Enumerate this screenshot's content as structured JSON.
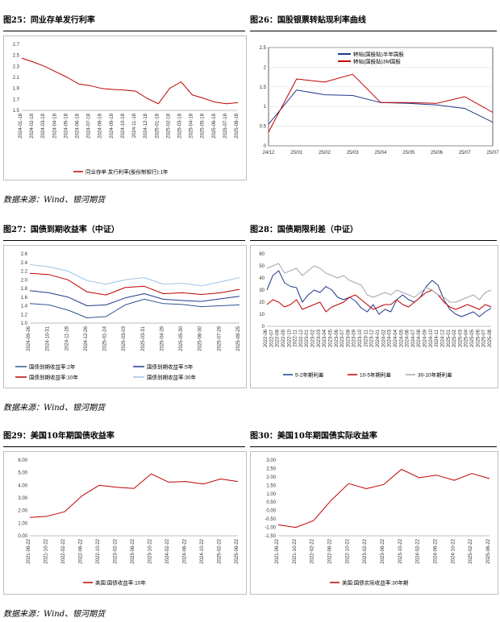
{
  "sections": [
    {
      "source": "数据来源：Wind、银河期货"
    },
    {
      "source": "数据来源：Wind、银河期货"
    },
    {
      "source": "数据来源：Wind、银河期货"
    }
  ],
  "colors": {
    "red": "#c00000",
    "navy": "#1f3a8a",
    "blue": "#2f5597",
    "lightblue": "#9dc3e6",
    "gray": "#a6a6a6",
    "darkred": "#c00000"
  },
  "chart_data": [
    {
      "id": "fig25",
      "type": "line",
      "title": "图25：同业存单发行利率",
      "ylim": [
        1.5,
        2.7
      ],
      "yticks": [
        1.5,
        1.7,
        1.9,
        2.1,
        2.3,
        2.5,
        2.7
      ],
      "x": [
        "2024-01-18",
        "2024-02-18",
        "2024-03-18",
        "2024-04-18",
        "2024-05-18",
        "2024-06-18",
        "2024-07-18",
        "2024-08-18",
        "2024-09-18",
        "2024-10-18",
        "2024-11-18",
        "2024-12-18",
        "2025-01-18",
        "2025-02-18",
        "2025-03-18",
        "2025-04-18",
        "2025-05-18",
        "2025-06-18",
        "2025-07-18",
        "2025-08-18"
      ],
      "series": [
        {
          "name": "同业存单:发行利率(股份制银行):1年",
          "values": [
            2.45,
            2.38,
            2.3,
            2.2,
            2.1,
            1.98,
            1.95,
            1.9,
            1.88,
            1.87,
            1.85,
            1.72,
            1.62,
            1.9,
            2.02,
            1.78,
            1.72,
            1.65,
            1.62,
            1.64
          ]
        }
      ]
    },
    {
      "id": "fig26",
      "type": "line",
      "title": "图26：国股银票转贴现利率曲线",
      "ylim": [
        0,
        2.5
      ],
      "yticks": [
        0,
        0.5,
        1,
        1.5,
        2,
        2.5
      ],
      "x": [
        "24/12",
        "25/01",
        "25/02",
        "25/03",
        "25/04",
        "25/05",
        "25/06",
        "25/07",
        "25/07"
      ],
      "series": [
        {
          "name": "转帖(国股贴)半年国股",
          "values": [
            0.55,
            1.42,
            1.3,
            1.28,
            1.1,
            1.08,
            1.04,
            0.95,
            0.6
          ]
        },
        {
          "name": "转帖(国股贴)3M国股",
          "values": [
            0.35,
            1.7,
            1.62,
            1.82,
            1.1,
            1.1,
            1.08,
            1.25,
            0.85
          ]
        }
      ]
    },
    {
      "id": "fig27",
      "type": "line",
      "title": "图27：国债到期收益率（中证）",
      "ylim": [
        1.0,
        2.6
      ],
      "yticks": [
        1.0,
        1.2,
        1.4,
        1.6,
        1.8,
        2.0,
        2.2,
        2.4,
        2.6
      ],
      "x": [
        "2024-09-26",
        "2024-10-31",
        "2024-11-28",
        "2024-12-26",
        "2025-01-24",
        "2025-03-03",
        "2025-03-31",
        "2025-04-29",
        "2025-05-30",
        "2025-06-30",
        "2025-07-28",
        "2025-08-25"
      ],
      "series": [
        {
          "name": "国债到期收益率:2年",
          "values": [
            1.45,
            1.42,
            1.3,
            1.12,
            1.15,
            1.42,
            1.55,
            1.45,
            1.43,
            1.38,
            1.4,
            1.42
          ]
        },
        {
          "name": "国债到期收益率:5年",
          "values": [
            1.75,
            1.7,
            1.6,
            1.4,
            1.42,
            1.58,
            1.68,
            1.55,
            1.52,
            1.5,
            1.56,
            1.62
          ]
        },
        {
          "name": "国债到期收益率:10年",
          "values": [
            2.15,
            2.12,
            2.0,
            1.72,
            1.65,
            1.82,
            1.85,
            1.68,
            1.7,
            1.66,
            1.7,
            1.78
          ]
        },
        {
          "name": "国债到期收益率:30年",
          "values": [
            2.35,
            2.3,
            2.2,
            1.98,
            1.9,
            2.0,
            2.05,
            1.9,
            1.92,
            1.86,
            1.95,
            2.05
          ]
        }
      ]
    },
    {
      "id": "fig28",
      "type": "line",
      "title": "图28：国债期限利差（中证）",
      "ylim": [
        0,
        60
      ],
      "yticks": [
        0,
        10,
        20,
        30,
        40,
        50,
        60
      ],
      "x": [
        "2022-06",
        "2022-07",
        "2022-08",
        "2022-09",
        "2022-10",
        "2022-11",
        "2022-12",
        "2023-01",
        "2023-02",
        "2023-03",
        "2023-04",
        "2023-05",
        "2023-06",
        "2023-07",
        "2023-08",
        "2023-09",
        "2023-10",
        "2023-11",
        "2023-12",
        "2024-01",
        "2024-02",
        "2024-03",
        "2024-04",
        "2024-05",
        "2024-06",
        "2024-07",
        "2024-08",
        "2024-09",
        "2024-10",
        "2024-11",
        "2024-12",
        "2025-01",
        "2025-02",
        "2025-03",
        "2025-04",
        "2025-05",
        "2025-06",
        "2025-07",
        "2025-08"
      ],
      "series": [
        {
          "name": "5-2年期利差",
          "values": [
            30,
            42,
            46,
            36,
            33,
            32,
            20,
            26,
            30,
            28,
            33,
            30,
            24,
            22,
            24,
            21,
            15,
            12,
            18,
            10,
            14,
            12,
            22,
            26,
            22,
            20,
            24,
            33,
            38,
            34,
            22,
            14,
            10,
            8,
            10,
            12,
            8,
            12,
            15
          ]
        },
        {
          "name": "10-5年期利差",
          "values": [
            18,
            22,
            20,
            16,
            18,
            22,
            14,
            16,
            18,
            20,
            12,
            16,
            18,
            20,
            24,
            26,
            22,
            18,
            14,
            16,
            18,
            18,
            22,
            18,
            16,
            20,
            24,
            28,
            30,
            26,
            20,
            16,
            14,
            16,
            18,
            16,
            14,
            18,
            16
          ]
        },
        {
          "name": "30-10年期利差",
          "values": [
            48,
            50,
            52,
            44,
            46,
            48,
            42,
            46,
            50,
            48,
            44,
            42,
            40,
            42,
            38,
            36,
            34,
            26,
            24,
            26,
            28,
            26,
            30,
            28,
            26,
            24,
            28,
            32,
            30,
            26,
            24,
            20,
            20,
            22,
            24,
            26,
            22,
            28,
            30
          ]
        }
      ]
    },
    {
      "id": "fig29",
      "type": "line",
      "title": "图29：美国10年期国债收益率",
      "ylim": [
        0,
        6
      ],
      "yticks": [
        0.0,
        1.0,
        2.0,
        3.0,
        4.0,
        5.0,
        6.0
      ],
      "x": [
        "2021-06-22",
        "2021-10-22",
        "2022-02-22",
        "2022-06-22",
        "2022-10-22",
        "2023-02-22",
        "2023-06-22",
        "2023-10-22",
        "2024-02-22",
        "2024-06-22",
        "2024-10-22",
        "2025-02-22",
        "2025-06-22"
      ],
      "series": [
        {
          "name": "美国:国债收益率:10年",
          "values": [
            1.45,
            1.55,
            1.9,
            3.15,
            4.0,
            3.85,
            3.75,
            4.9,
            4.25,
            4.3,
            4.1,
            4.5,
            4.3
          ]
        }
      ]
    },
    {
      "id": "fig30",
      "type": "line",
      "title": "图30：美国10年期国债实际收益率",
      "ylim": [
        -1.5,
        3.0
      ],
      "yticks": [
        -1.5,
        -1.0,
        -0.5,
        0.0,
        0.5,
        1.0,
        1.5,
        2.0,
        2.5,
        3.0
      ],
      "x": [
        "2021-06-22",
        "2021-10-22",
        "2022-02-22",
        "2022-06-22",
        "2022-10-22",
        "2023-02-22",
        "2023-06-22",
        "2023-10-22",
        "2024-02-22",
        "2024-06-22",
        "2024-10-22",
        "2025-02-22",
        "2025-06-22"
      ],
      "series": [
        {
          "name": "美国:国债实际收益率:30年期",
          "values": [
            -0.85,
            -1.0,
            -0.6,
            0.6,
            1.6,
            1.3,
            1.55,
            2.45,
            1.95,
            2.1,
            1.8,
            2.2,
            1.9
          ]
        }
      ]
    }
  ]
}
